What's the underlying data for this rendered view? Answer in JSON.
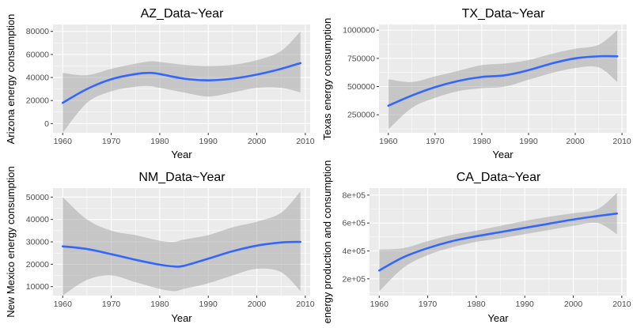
{
  "colors": {
    "panel": "#ebebeb",
    "grid_major": "#ffffff",
    "line": "#3366ff",
    "band": "#999999",
    "tick_text": "#4d4d4d"
  },
  "chart_data": [
    {
      "type": "line",
      "title": "AZ_Data~Year",
      "xlabel": "Year",
      "ylabel": "Arizona energy consumption",
      "xlim": [
        1958,
        2011
      ],
      "ylim": [
        -8000,
        86000
      ],
      "xticks": [
        1960,
        1970,
        1980,
        1990,
        2000,
        2010
      ],
      "xtick_labels": [
        "1960",
        "1970",
        "1980",
        "1990",
        "2000",
        "2010"
      ],
      "yticks": [
        0,
        20000,
        40000,
        60000,
        80000
      ],
      "ytick_labels": [
        "0",
        "20000",
        "40000",
        "60000",
        "80000"
      ],
      "grid": true,
      "x": [
        1960,
        1965,
        1970,
        1975,
        1978,
        1980,
        1985,
        1990,
        1995,
        2000,
        2005,
        2009
      ],
      "y": [
        18000,
        30000,
        38500,
        43000,
        44000,
        43000,
        39000,
        37500,
        39000,
        42500,
        47500,
        52500
      ],
      "ci_lower": [
        -8000,
        18000,
        28000,
        32000,
        32500,
        31000,
        27000,
        23500,
        27000,
        31000,
        31000,
        27000
      ],
      "ci_upper": [
        44000,
        42000,
        47500,
        52000,
        54000,
        53500,
        51000,
        50000,
        51000,
        55000,
        63000,
        80000
      ]
    },
    {
      "type": "line",
      "title": "TX_Data~Year",
      "xlabel": "Year",
      "ylabel": "Texas energy consumption",
      "xlim": [
        1958,
        2011
      ],
      "ylim": [
        90000,
        1050000
      ],
      "xticks": [
        1960,
        1970,
        1980,
        1990,
        2000,
        2010
      ],
      "xtick_labels": [
        "1960",
        "1970",
        "1980",
        "1990",
        "2000",
        "2010"
      ],
      "yticks": [
        250000,
        500000,
        750000,
        1000000
      ],
      "ytick_labels": [
        "250000",
        "500000",
        "750000",
        "1000000"
      ],
      "grid": true,
      "x": [
        1960,
        1965,
        1970,
        1975,
        1980,
        1985,
        1990,
        1995,
        2000,
        2005,
        2009
      ],
      "y": [
        330000,
        420000,
        495000,
        550000,
        585000,
        600000,
        645000,
        705000,
        750000,
        768000,
        768000
      ],
      "ci_lower": [
        120000,
        310000,
        400000,
        460000,
        485000,
        500000,
        560000,
        620000,
        665000,
        670000,
        540000
      ],
      "ci_upper": [
        565000,
        540000,
        590000,
        640000,
        690000,
        705000,
        735000,
        790000,
        835000,
        870000,
        1000000
      ]
    },
    {
      "type": "line",
      "title": "NM_Data~Year",
      "xlabel": "Year",
      "ylabel": "New Mexico energy consumption",
      "xlim": [
        1958,
        2011
      ],
      "ylim": [
        6000,
        54000
      ],
      "xticks": [
        1960,
        1970,
        1980,
        1990,
        2000,
        2010
      ],
      "xtick_labels": [
        "1960",
        "1970",
        "1980",
        "1990",
        "2000",
        "2010"
      ],
      "yticks": [
        10000,
        20000,
        30000,
        40000,
        50000
      ],
      "ytick_labels": [
        "10000",
        "20000",
        "30000",
        "40000",
        "50000"
      ],
      "grid": true,
      "x": [
        1960,
        1965,
        1970,
        1975,
        1980,
        1983,
        1985,
        1990,
        1995,
        2000,
        2005,
        2009
      ],
      "y": [
        28000,
        26800,
        24500,
        22000,
        19800,
        19000,
        19300,
        22500,
        25800,
        28300,
        29700,
        30000
      ],
      "ci_lower": [
        6000,
        13000,
        15000,
        12000,
        9000,
        8000,
        9000,
        11500,
        15000,
        18000,
        16500,
        8000
      ],
      "ci_upper": [
        50000,
        40000,
        35000,
        33000,
        30500,
        30000,
        31000,
        33000,
        36500,
        39000,
        43000,
        52500
      ]
    },
    {
      "type": "line",
      "title": "CA_Data~Year",
      "xlabel": "Year",
      "ylabel": "energy production and consumption",
      "xlim": [
        1958,
        2011
      ],
      "ylim": [
        80000,
        850000
      ],
      "xticks": [
        1960,
        1970,
        1980,
        1990,
        2000,
        2010
      ],
      "xtick_labels": [
        "1960",
        "1970",
        "1980",
        "1990",
        "2000",
        "2010"
      ],
      "yticks": [
        200000,
        400000,
        600000,
        800000
      ],
      "ytick_labels": [
        "2e+05",
        "4e+05",
        "6e+05",
        "8e+05"
      ],
      "grid": true,
      "x": [
        1960,
        1965,
        1970,
        1975,
        1980,
        1985,
        1990,
        1995,
        2000,
        2005,
        2009
      ],
      "y": [
        260000,
        355000,
        420000,
        470000,
        505000,
        535000,
        565000,
        595000,
        625000,
        650000,
        668000
      ],
      "ci_lower": [
        110000,
        280000,
        370000,
        425000,
        465000,
        490000,
        520000,
        550000,
        580000,
        600000,
        520000
      ],
      "ci_upper": [
        410000,
        420000,
        470000,
        515000,
        545000,
        580000,
        615000,
        645000,
        670000,
        700000,
        815000
      ]
    }
  ]
}
